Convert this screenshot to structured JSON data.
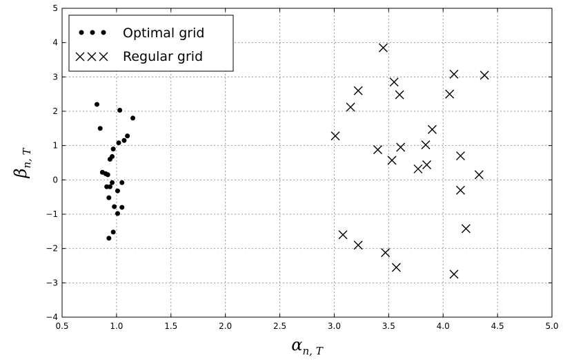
{
  "chart_data": {
    "type": "scatter",
    "title": "",
    "xlabel": "α",
    "xlabel_sub": "n, T",
    "ylabel": "β",
    "ylabel_sub": "n, T",
    "xlim": [
      0.5,
      5.0
    ],
    "ylim": [
      -4,
      5
    ],
    "xticks": [
      0.5,
      1.0,
      1.5,
      2.0,
      2.5,
      3.0,
      3.5,
      4.0,
      4.5,
      5.0
    ],
    "xtick_labels": [
      "0.5",
      "1.0",
      "1.5",
      "2.0",
      "2.5",
      "3.0",
      "3.5",
      "4.0",
      "4.5",
      "5.0"
    ],
    "yticks": [
      -4,
      -3,
      -2,
      -1,
      0,
      1,
      2,
      3,
      4,
      5
    ],
    "ytick_labels": [
      "−4",
      "−3",
      "−2",
      "−1",
      "0",
      "1",
      "2",
      "3",
      "4",
      "5"
    ],
    "grid": true,
    "legend_position": "top-left",
    "series": [
      {
        "name": "Optimal grid",
        "marker": "circle",
        "color": "#000000",
        "points": [
          [
            0.82,
            2.2
          ],
          [
            0.85,
            1.5
          ],
          [
            1.03,
            2.03
          ],
          [
            1.15,
            1.8
          ],
          [
            1.1,
            1.28
          ],
          [
            1.07,
            1.15
          ],
          [
            1.02,
            1.08
          ],
          [
            0.97,
            0.9
          ],
          [
            0.96,
            0.68
          ],
          [
            0.94,
            0.6
          ],
          [
            0.87,
            0.22
          ],
          [
            0.9,
            0.18
          ],
          [
            0.92,
            0.15
          ],
          [
            0.96,
            -0.08
          ],
          [
            1.05,
            -0.08
          ],
          [
            0.91,
            -0.2
          ],
          [
            0.94,
            -0.2
          ],
          [
            1.01,
            -0.32
          ],
          [
            0.93,
            -0.52
          ],
          [
            0.98,
            -0.78
          ],
          [
            1.05,
            -0.8
          ],
          [
            1.01,
            -0.98
          ],
          [
            0.97,
            -1.52
          ],
          [
            0.93,
            -1.7
          ]
        ]
      },
      {
        "name": "Regular grid",
        "marker": "x",
        "color": "#000000",
        "points": [
          [
            3.45,
            3.85
          ],
          [
            3.55,
            2.85
          ],
          [
            3.6,
            2.48
          ],
          [
            3.22,
            2.6
          ],
          [
            3.15,
            2.12
          ],
          [
            3.01,
            1.28
          ],
          [
            3.4,
            0.88
          ],
          [
            3.53,
            0.57
          ],
          [
            3.61,
            0.95
          ],
          [
            3.84,
            1.02
          ],
          [
            3.9,
            1.47
          ],
          [
            4.06,
            2.5
          ],
          [
            4.1,
            3.08
          ],
          [
            4.38,
            3.05
          ],
          [
            4.16,
            0.7
          ],
          [
            3.77,
            0.32
          ],
          [
            3.85,
            0.44
          ],
          [
            4.16,
            -0.3
          ],
          [
            4.33,
            0.15
          ],
          [
            4.21,
            -1.42
          ],
          [
            3.08,
            -1.6
          ],
          [
            3.22,
            -1.9
          ],
          [
            3.47,
            -2.12
          ],
          [
            3.57,
            -2.55
          ],
          [
            4.1,
            -2.75
          ]
        ]
      }
    ]
  }
}
